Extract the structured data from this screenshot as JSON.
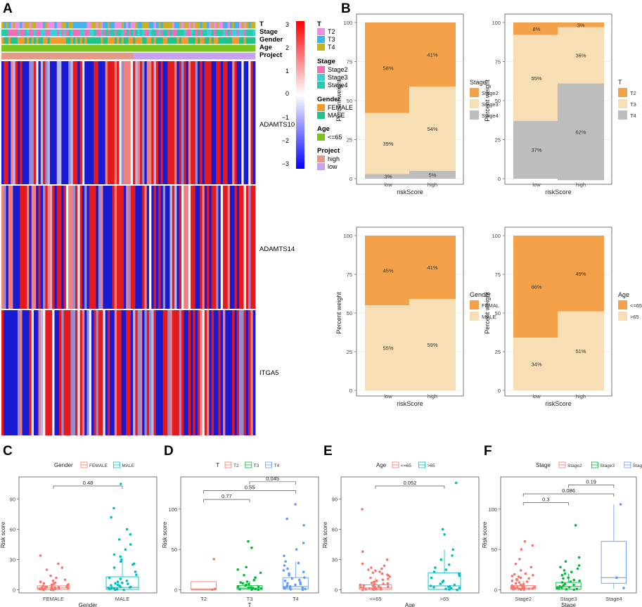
{
  "panel_labels": {
    "A": "A",
    "B": "B",
    "C": "C",
    "D": "D",
    "E": "E",
    "F": "F"
  },
  "colors": {
    "stack_dark": "#F4A24A",
    "stack_mid": "#F7DEB4",
    "stack_light": "#BDBDBD",
    "heat_high": "#E41A1C",
    "heat_low": "#1A1AD0",
    "heat_mid": "#F2F2F2",
    "T2": "#F08CE8",
    "T3": "#3EB4F0",
    "T4": "#C9B11E",
    "Stage2": "#F06EB4",
    "Stage3": "#3CCFD8",
    "Stage4": "#28C9A8",
    "FEMALE": "#F49A2A",
    "MALE": "#1FC48A",
    "age_le65": "#7AC41E",
    "proj_high": "#E49A84",
    "proj_low": "#C6A2F0",
    "box_red": "#F8766D",
    "box_cyan": "#00BFC4",
    "box_green": "#00BA38",
    "box_blue": "#619CFF"
  },
  "heatmap": {
    "annotation_rows": [
      "T",
      "Stage",
      "Gender",
      "Age",
      "Project"
    ],
    "genes": [
      "ADAMTS10",
      "ADAMTS14",
      "ITGA5"
    ],
    "colorbar_ticks": [
      "3",
      "2",
      "1",
      "0",
      "−1",
      "−2",
      "−3"
    ],
    "legend": [
      {
        "title": "T",
        "items": [
          {
            "label": "T2",
            "color": "#F08CE8"
          },
          {
            "label": "T3",
            "color": "#3EB4F0"
          },
          {
            "label": "T4",
            "color": "#C9B11E"
          }
        ]
      },
      {
        "title": "Stage",
        "items": [
          {
            "label": "Stage2",
            "color": "#F06EB4"
          },
          {
            "label": "Stage3",
            "color": "#3CCFD8"
          },
          {
            "label": "Stage4",
            "color": "#28C9A8"
          }
        ]
      },
      {
        "title": "Gender",
        "items": [
          {
            "label": "FEMALE",
            "color": "#F49A2A"
          },
          {
            "label": "MALE",
            "color": "#1FC48A"
          }
        ]
      },
      {
        "title": "Age",
        "items": [
          {
            "label": "<=65",
            "color": "#7AC41E"
          }
        ]
      },
      {
        "title": "Project",
        "items": [
          {
            "label": "high",
            "color": "#E49A84"
          },
          {
            "label": "low",
            "color": "#C6A2F0"
          }
        ]
      }
    ]
  },
  "chart_data": [
    {
      "type": "bar",
      "stacked": true,
      "panel": "B1",
      "categories": [
        "low",
        "high"
      ],
      "series": [
        {
          "name": "Stage2",
          "values": [
            58,
            41
          ],
          "labels": [
            "58%",
            "41%"
          ]
        },
        {
          "name": "Stage3",
          "values": [
            39,
            54
          ],
          "labels": [
            "39%",
            "54%"
          ]
        },
        {
          "name": "Stage4",
          "values": [
            3,
            5
          ],
          "labels": [
            "3%",
            "5%"
          ]
        }
      ],
      "xlabel": "riskScore",
      "ylabel": "Percent weight",
      "ylim": [
        0,
        100
      ],
      "yticks": [
        "0",
        "25",
        "50",
        "75",
        "100"
      ],
      "legend_title": "Stage",
      "legend_labels": [
        "Stage2",
        "Stage3",
        "Stage4"
      ]
    },
    {
      "type": "bar",
      "stacked": true,
      "panel": "B2",
      "categories": [
        "low",
        "high"
      ],
      "series": [
        {
          "name": "T2",
          "values": [
            8,
            3
          ],
          "labels": [
            "8%",
            "3%"
          ]
        },
        {
          "name": "T3",
          "values": [
            55,
            36
          ],
          "labels": [
            "55%",
            "36%"
          ]
        },
        {
          "name": "T4",
          "values": [
            37,
            62
          ],
          "labels": [
            "37%",
            "62%"
          ]
        }
      ],
      "xlabel": "riskScore",
      "ylabel": "Percent weight",
      "ylim": [
        0,
        100
      ],
      "yticks": [
        "0",
        "25",
        "50",
        "75",
        "100"
      ],
      "legend_title": "T",
      "legend_labels": [
        "T2",
        "T3",
        "T4"
      ]
    },
    {
      "type": "bar",
      "stacked": true,
      "panel": "B3",
      "categories": [
        "low",
        "high"
      ],
      "series": [
        {
          "name": "FEMAL",
          "values": [
            45,
            41
          ],
          "labels": [
            "45%",
            "41%"
          ]
        },
        {
          "name": "MALE",
          "values": [
            55,
            59
          ],
          "labels": [
            "55%",
            "59%"
          ]
        }
      ],
      "xlabel": "riskScore",
      "ylabel": "Percent weight",
      "ylim": [
        0,
        100
      ],
      "yticks": [
        "0",
        "25",
        "50",
        "75",
        "100"
      ],
      "legend_title": "Gender",
      "legend_labels": [
        "FEMAL",
        "MALE"
      ]
    },
    {
      "type": "bar",
      "stacked": true,
      "panel": "B4",
      "categories": [
        "low",
        "high"
      ],
      "series": [
        {
          "name": "<=65",
          "values": [
            66,
            49
          ],
          "labels": [
            "66%",
            "49%"
          ]
        },
        {
          "name": ">65",
          "values": [
            34,
            51
          ],
          "labels": [
            "34%",
            "51%"
          ]
        }
      ],
      "xlabel": "riskScore",
      "ylabel": "Percent weight",
      "ylim": [
        0,
        100
      ],
      "yticks": [
        "0",
        "25",
        "50",
        "75",
        "100"
      ],
      "legend_title": "Age",
      "legend_labels": [
        "<=65",
        ">65"
      ]
    },
    {
      "type": "box",
      "panel": "C",
      "legend_title": "Gender",
      "categories": [
        "FEMALE",
        "MALE"
      ],
      "colors": [
        "#F8766D",
        "#00BFC4"
      ],
      "boxes": [
        {
          "q1": 0.5,
          "median": 2,
          "q3": 4,
          "whisker_lo": 0,
          "whisker_hi": 9
        },
        {
          "q1": 0.5,
          "median": 2.5,
          "q3": 13,
          "whisker_lo": 0,
          "whisker_hi": 30
        }
      ],
      "points": [
        [
          0,
          1,
          2,
          3,
          5,
          6,
          8,
          10,
          12,
          14,
          20,
          22,
          26,
          34,
          0.5,
          1.5,
          2.5,
          4,
          7,
          9,
          0,
          1,
          3,
          2,
          0.8,
          1.2,
          4.5,
          6.5,
          0.3,
          2.2,
          1.8,
          3.3,
          0.6,
          5.5,
          2.8,
          1.1
        ],
        [
          0,
          1,
          2,
          3,
          5,
          8,
          12,
          18,
          22,
          26,
          30,
          35,
          40,
          50,
          55,
          60,
          72,
          81,
          105,
          1,
          2,
          4,
          6,
          9,
          15,
          0.5,
          3,
          7,
          11,
          25,
          28,
          33,
          0.2,
          1.5,
          2.5,
          4.5,
          6.5,
          45
        ]
      ],
      "xlabel": "Gender",
      "ylabel": "Risk score",
      "ylim": [
        -3,
        112
      ],
      "yticks": [
        0,
        30,
        60,
        90
      ],
      "comparisons": [
        {
          "from": 0,
          "to": 1,
          "label": "0.48",
          "y": 103
        }
      ]
    },
    {
      "type": "box",
      "panel": "D",
      "legend_title": "T",
      "categories": [
        "T2",
        "T3",
        "T4"
      ],
      "colors": [
        "#F8766D",
        "#00BA38",
        "#619CFF"
      ],
      "boxes": [
        {
          "q1": 0,
          "median": 1,
          "q3": 10,
          "whisker_lo": 0,
          "whisker_hi": 10
        },
        {
          "q1": 0.5,
          "median": 2,
          "q3": 5,
          "whisker_lo": 0,
          "whisker_hi": 11
        },
        {
          "q1": 1,
          "median": 4,
          "q3": 15,
          "whisker_lo": 0,
          "whisker_hi": 35
        }
      ],
      "points": [
        [
          0,
          1,
          38
        ],
        [
          0,
          1,
          2,
          3,
          4,
          5,
          6,
          8,
          10,
          12,
          15,
          18,
          21,
          25,
          28,
          52,
          60,
          0.5,
          1.5,
          2.5,
          3.5,
          0.2,
          7,
          9
        ],
        [
          0,
          1,
          2,
          3,
          5,
          7,
          9,
          12,
          15,
          18,
          22,
          26,
          30,
          35,
          42,
          50,
          58,
          80,
          88,
          106,
          1.5,
          4,
          6,
          11,
          14,
          20,
          0.5,
          2.5,
          3.5,
          8,
          24,
          33
        ]
      ],
      "xlabel": "T",
      "ylabel": "Risk score",
      "ylim": [
        -4,
        140
      ],
      "yticks": [
        0,
        50,
        100
      ],
      "comparisons": [
        {
          "from": 0,
          "to": 1,
          "label": "0.77",
          "y": 112
        },
        {
          "from": 0,
          "to": 2,
          "label": "0.55",
          "y": 123
        },
        {
          "from": 1,
          "to": 2,
          "label": "0.045",
          "y": 134
        }
      ]
    },
    {
      "type": "box",
      "panel": "E",
      "legend_title": "Age",
      "categories": [
        "<=65",
        ">65"
      ],
      "colors": [
        "#F8766D",
        "#00BFC4"
      ],
      "boxes": [
        {
          "q1": 0.5,
          "median": 2,
          "q3": 5,
          "whisker_lo": 0,
          "whisker_hi": 12
        },
        {
          "q1": 0.5,
          "median": 4,
          "q3": 17,
          "whisker_lo": 0,
          "whisker_hi": 40
        }
      ],
      "points": [
        [
          0,
          1,
          2,
          3,
          4,
          5,
          6,
          8,
          10,
          12,
          14,
          16,
          18,
          20,
          22,
          26,
          30,
          38,
          80,
          0.5,
          1.5,
          2.5,
          3.5,
          0.2,
          7,
          9,
          11,
          0.8,
          1.2,
          4.5,
          6.5,
          2.2,
          1.8,
          3.3,
          0.6,
          5.5,
          13,
          15,
          17,
          19,
          21,
          24
        ],
        [
          0,
          1,
          2,
          3,
          5,
          8,
          12,
          16,
          20,
          25,
          30,
          34,
          40,
          55,
          60,
          106,
          1.5,
          4,
          6,
          9,
          14,
          0.5,
          2.5,
          3.5,
          18,
          22
        ]
      ],
      "xlabel": "Age",
      "ylabel": "Risk score",
      "ylim": [
        -3,
        112
      ],
      "yticks": [
        0,
        30,
        60,
        90
      ],
      "comparisons": [
        {
          "from": 0,
          "to": 1,
          "label": "0.052",
          "y": 103
        }
      ]
    },
    {
      "type": "box",
      "panel": "F",
      "legend_title": "Stage",
      "categories": [
        "Stage2",
        "Stage3",
        "Stage4"
      ],
      "colors": [
        "#F8766D",
        "#00BA38",
        "#619CFF"
      ],
      "boxes": [
        {
          "q1": 0.5,
          "median": 2,
          "q3": 5,
          "whisker_lo": 0,
          "whisker_hi": 11
        },
        {
          "q1": 0.5,
          "median": 4,
          "q3": 9,
          "whisker_lo": 0,
          "whisker_hi": 20
        },
        {
          "q1": 8,
          "median": 15,
          "q3": 60,
          "whisker_lo": 1,
          "whisker_hi": 106
        }
      ],
      "points": [
        [
          0,
          1,
          2,
          3,
          4,
          5,
          6,
          8,
          10,
          12,
          14,
          16,
          18,
          20,
          24,
          28,
          32,
          38,
          50,
          55,
          60,
          0.5,
          1.5,
          2.5,
          3.5,
          0.2,
          7,
          9,
          11,
          0.8,
          1.2,
          4.5,
          2.2,
          1.8,
          3.3,
          0.6,
          13,
          15,
          17,
          19
        ],
        [
          0,
          1,
          2,
          3,
          5,
          7,
          9,
          12,
          15,
          18,
          22,
          26,
          30,
          35,
          40,
          80,
          0.5,
          1.5,
          2.5,
          4,
          6,
          10,
          11,
          14,
          20,
          24,
          28
        ],
        [
          2,
          15,
          106
        ]
      ],
      "xlabel": "Stage",
      "ylabel": "Risk score",
      "ylim": [
        -4,
        140
      ],
      "yticks": [
        0,
        50,
        100
      ],
      "comparisons": [
        {
          "from": 0,
          "to": 1,
          "label": "0.3",
          "y": 108
        },
        {
          "from": 0,
          "to": 2,
          "label": "0.086",
          "y": 119
        },
        {
          "from": 1,
          "to": 2,
          "label": "0.19",
          "y": 130
        }
      ]
    }
  ]
}
